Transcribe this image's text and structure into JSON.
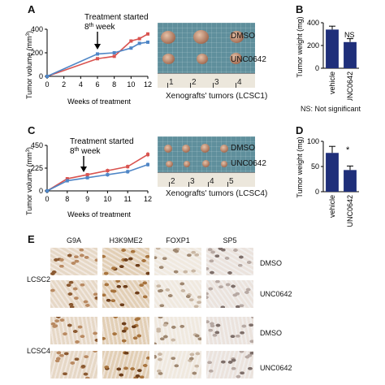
{
  "figure": {
    "panel_labels": [
      "A",
      "B",
      "C",
      "D",
      "E"
    ]
  },
  "panel_a": {
    "treatment_line1": "Treatment started",
    "treatment_line2_pre": "8",
    "treatment_line2_sup": "th",
    "treatment_line2_post": " week",
    "photo": {
      "label_dmso": "DMSO",
      "label_unc": "UNC0642",
      "caption": "Xenografts' tumors (LCSC1)",
      "ruler": [
        "1",
        "2",
        "3",
        "4"
      ]
    }
  },
  "panel_b": {
    "annotation": "NS",
    "footnote": "NS: Not significant"
  },
  "panel_c": {
    "treatment_line1": "Treatment started",
    "treatment_line2_pre": "8",
    "treatment_line2_sup": "th",
    "treatment_line2_post": " week",
    "photo": {
      "label_dmso": "DMSO",
      "label_unc": "UNC0642",
      "caption": "Xenografts' tumors (LCSC4)",
      "ruler": [
        "2",
        "3",
        "4",
        "5"
      ]
    }
  },
  "panel_d": {
    "annotation": "*"
  },
  "panel_e": {
    "columns": [
      "G9A",
      "H3K9ME2",
      "FOXP1",
      "SP5"
    ],
    "rows": [
      "DMSO",
      "UNC0642",
      "DMSO",
      "UNC0642"
    ],
    "groups": [
      "LCSC2",
      "LCSC4"
    ]
  },
  "colors": {
    "dmso": "#d9534f",
    "unc": "#4f86c6",
    "bar": "#1f2f7a",
    "photo_bg": "#5f8f9c"
  },
  "chart_data": [
    {
      "panel": "A",
      "type": "line",
      "xlabel": "Weeks of treatment",
      "ylabel": "Tumor volume (mm3)",
      "ylabel_main": "Tumor volume",
      "ylabel_unit_pre": "(mm",
      "ylabel_unit_sup": "3",
      "ylabel_unit_post": ")",
      "x": [
        0,
        8,
        10,
        12
      ],
      "x_ticks": [
        "0",
        "2",
        "4",
        "6",
        "8",
        "10",
        "12"
      ],
      "x_tick_values": [
        0,
        2,
        4,
        6,
        8,
        10,
        12
      ],
      "y_ticks": [
        "0",
        "200",
        "400"
      ],
      "y_tick_values": [
        0,
        200,
        400
      ],
      "xlim": [
        0,
        12
      ],
      "ylim": [
        0,
        400
      ],
      "series": [
        {
          "key": "dmso",
          "color": "#d9534f",
          "x": [
            0,
            6,
            8,
            10,
            11,
            12
          ],
          "values": [
            0,
            150,
            170,
            300,
            320,
            360
          ]
        },
        {
          "key": "unc",
          "color": "#4f86c6",
          "x": [
            0,
            6,
            8,
            10,
            11,
            12
          ],
          "values": [
            0,
            190,
            200,
            240,
            280,
            290
          ]
        }
      ]
    },
    {
      "panel": "B",
      "type": "bar",
      "ylabel": "Tumor weight (mg)",
      "categories": [
        "vehicle",
        "UNC0642"
      ],
      "values": [
        340,
        230
      ],
      "errors": [
        30,
        30
      ],
      "y_ticks": [
        "0",
        "200",
        "400"
      ],
      "y_tick_values": [
        0,
        200,
        400
      ],
      "ylim": [
        0,
        400
      ]
    },
    {
      "panel": "C",
      "type": "line",
      "xlabel": "Weeks of treatment",
      "ylabel": "Tumor volume (mm3)",
      "ylabel_main": "Tumor volume",
      "ylabel_unit_pre": "(mm",
      "ylabel_unit_sup": "3",
      "ylabel_unit_post": ")",
      "x_ticks": [
        "0",
        "8",
        "9",
        "10",
        "11",
        "12"
      ],
      "x_tick_values": [
        0,
        8,
        9,
        10,
        11,
        12
      ],
      "y_ticks": [
        "0",
        "225",
        "450"
      ],
      "y_tick_values": [
        0,
        225,
        450
      ],
      "ylim": [
        0,
        450
      ],
      "series": [
        {
          "key": "dmso",
          "color": "#d9534f",
          "x": [
            0,
            8,
            9,
            10,
            11,
            12
          ],
          "values": [
            0,
            120,
            160,
            200,
            240,
            360
          ],
          "errors": [
            0,
            15,
            15,
            20,
            20,
            25
          ]
        },
        {
          "key": "unc",
          "color": "#4f86c6",
          "x": [
            0,
            8,
            9,
            10,
            11,
            12
          ],
          "values": [
            0,
            100,
            130,
            160,
            190,
            260
          ],
          "errors": [
            0,
            15,
            15,
            20,
            20,
            20
          ]
        }
      ]
    },
    {
      "panel": "D",
      "type": "bar",
      "ylabel": "Tumor weight (mg)",
      "categories": [
        "vehicle",
        "UNC0642"
      ],
      "values": [
        77,
        43
      ],
      "errors": [
        13,
        8
      ],
      "y_ticks": [
        "0",
        "50",
        "100"
      ],
      "y_tick_values": [
        0,
        50,
        100
      ],
      "ylim": [
        0,
        100
      ]
    }
  ]
}
